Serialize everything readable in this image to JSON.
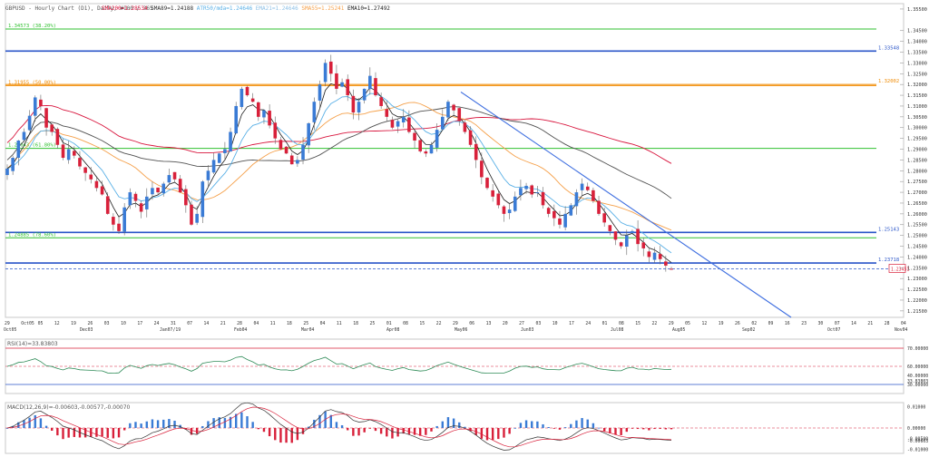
{
  "header": {
    "title_text": "GBPUSD - Hourly Chart (D1), Daily, #100 / 365",
    "indicators": [
      {
        "text": "SMA200=1.28534",
        "color": "#d8143c"
      },
      {
        "text": "SMA89=1.24188",
        "color": "#2b2b2b"
      },
      {
        "text": "ATR50/mda=1.24646",
        "color": "#5ab0e6"
      },
      {
        "text": "EMA21=1.24646",
        "color": "#8fc1e6"
      },
      {
        "text": "SMA55=1.25241",
        "color": "#f5a04a"
      },
      {
        "text": "EMA10=1.27492",
        "color": "#1c1c1c"
      }
    ]
  },
  "colors": {
    "bull": "#3a7bd5",
    "bear": "#d8203a",
    "trendline": "#3f6fe0",
    "fib_green": "#30c030",
    "orange": "#f08a00",
    "blue_h": "#2a55c8",
    "rsi_line": "#2e8b57",
    "ref_red": "#d8203a"
  },
  "price_scale": {
    "ticks": [
      "1.35500",
      "1.34500",
      "1.34000",
      "1.33500",
      "1.33000",
      "1.32500",
      "1.32000",
      "1.31500",
      "1.31000",
      "1.30500",
      "1.30000",
      "1.29500",
      "1.29000",
      "1.28500",
      "1.28000",
      "1.27500",
      "1.27000",
      "1.26500",
      "1.26000",
      "1.25500",
      "1.25000",
      "1.24500",
      "1.24000",
      "1.23500",
      "1.23000",
      "1.22500",
      "1.22000",
      "1.21500"
    ],
    "current": "1.23451"
  },
  "levels": [
    {
      "label": "1.34573 (38.20%)",
      "price": 1.3457,
      "color": "#30c030"
    },
    {
      "label": "1.33548",
      "price": 1.3355,
      "color": "#2a55c8"
    },
    {
      "label": "1.31955 (50.00%)",
      "price": 1.3195,
      "color": "#f08a00"
    },
    {
      "label": "1.32002",
      "price": 1.32,
      "color": "#f08a00"
    },
    {
      "label": "1.29043 (61.80%)",
      "price": 1.2904,
      "color": "#30c030"
    },
    {
      "label": "1.25143",
      "price": 1.2514,
      "color": "#2a55c8"
    },
    {
      "label": "1.24885 (78.60%)",
      "price": 1.2489,
      "color": "#30c030"
    },
    {
      "label": "1.23718",
      "price": 1.2372,
      "color": "#2a55c8"
    }
  ],
  "x_axis": {
    "labels": [
      "29",
      "Oct05",
      "05",
      "12",
      "19",
      "26",
      "03",
      "10",
      "17",
      "24",
      "31",
      "07",
      "14",
      "21",
      "28",
      "04",
      "11",
      "18",
      "25",
      "04",
      "11",
      "18",
      "25",
      "01",
      "08",
      "15",
      "22",
      "29",
      "06",
      "13",
      "20",
      "27",
      "03",
      "10",
      "17",
      "24",
      "01",
      "08",
      "15",
      "22",
      "29",
      "05",
      "12",
      "19",
      "26",
      "02",
      "09",
      "16",
      "23",
      "30",
      "07",
      "14",
      "21",
      "28",
      "04"
    ],
    "sublabels": [
      "Oct05",
      "Dec03",
      "Jan07/19",
      "Feb04",
      "Mar04",
      "Apr08",
      "May06",
      "Jun03",
      "Jul08",
      "Aug05",
      "Sep02",
      "Oct07",
      "Nov04"
    ]
  },
  "rsi": {
    "title": "RSI(14)=33.83803",
    "ticks": [
      "70.00000",
      "60.00000",
      "40.00000",
      "33.83803",
      "30.00000"
    ]
  },
  "macd": {
    "title": "MACD(12,26,9)=-0.00603,-0.00577,-0.00070",
    "ticks": [
      "0.01000",
      "0.00000",
      "-0.00500",
      "-0.00603",
      "-0.01000"
    ]
  },
  "chart_data": {
    "type": "candlestick",
    "symbol": "GBPUSD",
    "ylim": [
      1.212,
      1.3575
    ],
    "closes": [
      1.281,
      1.286,
      1.294,
      1.298,
      1.3055,
      1.314,
      1.31,
      1.3,
      1.298,
      1.292,
      1.286,
      1.29,
      1.287,
      1.282,
      1.279,
      1.276,
      1.272,
      1.269,
      1.26,
      1.255,
      1.252,
      1.263,
      1.27,
      1.266,
      1.261,
      1.268,
      1.272,
      1.27,
      1.274,
      1.278,
      1.276,
      1.27,
      1.264,
      1.255,
      1.26,
      1.275,
      1.28,
      1.285,
      1.288,
      1.29,
      1.298,
      1.31,
      1.318,
      1.315,
      1.312,
      1.305,
      1.308,
      1.301,
      1.295,
      1.29,
      1.288,
      1.283,
      1.285,
      1.292,
      1.302,
      1.312,
      1.32,
      1.33,
      1.325,
      1.318,
      1.321,
      1.315,
      1.307,
      1.312,
      1.318,
      1.324,
      1.315,
      1.31,
      1.305,
      1.3,
      1.303,
      1.305,
      1.298,
      1.294,
      1.289,
      1.288,
      1.292,
      1.299,
      1.305,
      1.312,
      1.308,
      1.303,
      1.298,
      1.292,
      1.285,
      1.277,
      1.272,
      1.268,
      1.264,
      1.26,
      1.262,
      1.268,
      1.272,
      1.273,
      1.269,
      1.27,
      1.264,
      1.26,
      1.258,
      1.255,
      1.26,
      1.264,
      1.27,
      1.274,
      1.271,
      1.266,
      1.26,
      1.256,
      1.252,
      1.248,
      1.245,
      1.25,
      1.252,
      1.246,
      1.244,
      1.24,
      1.242,
      1.239,
      1.236,
      1.2345
    ]
  }
}
